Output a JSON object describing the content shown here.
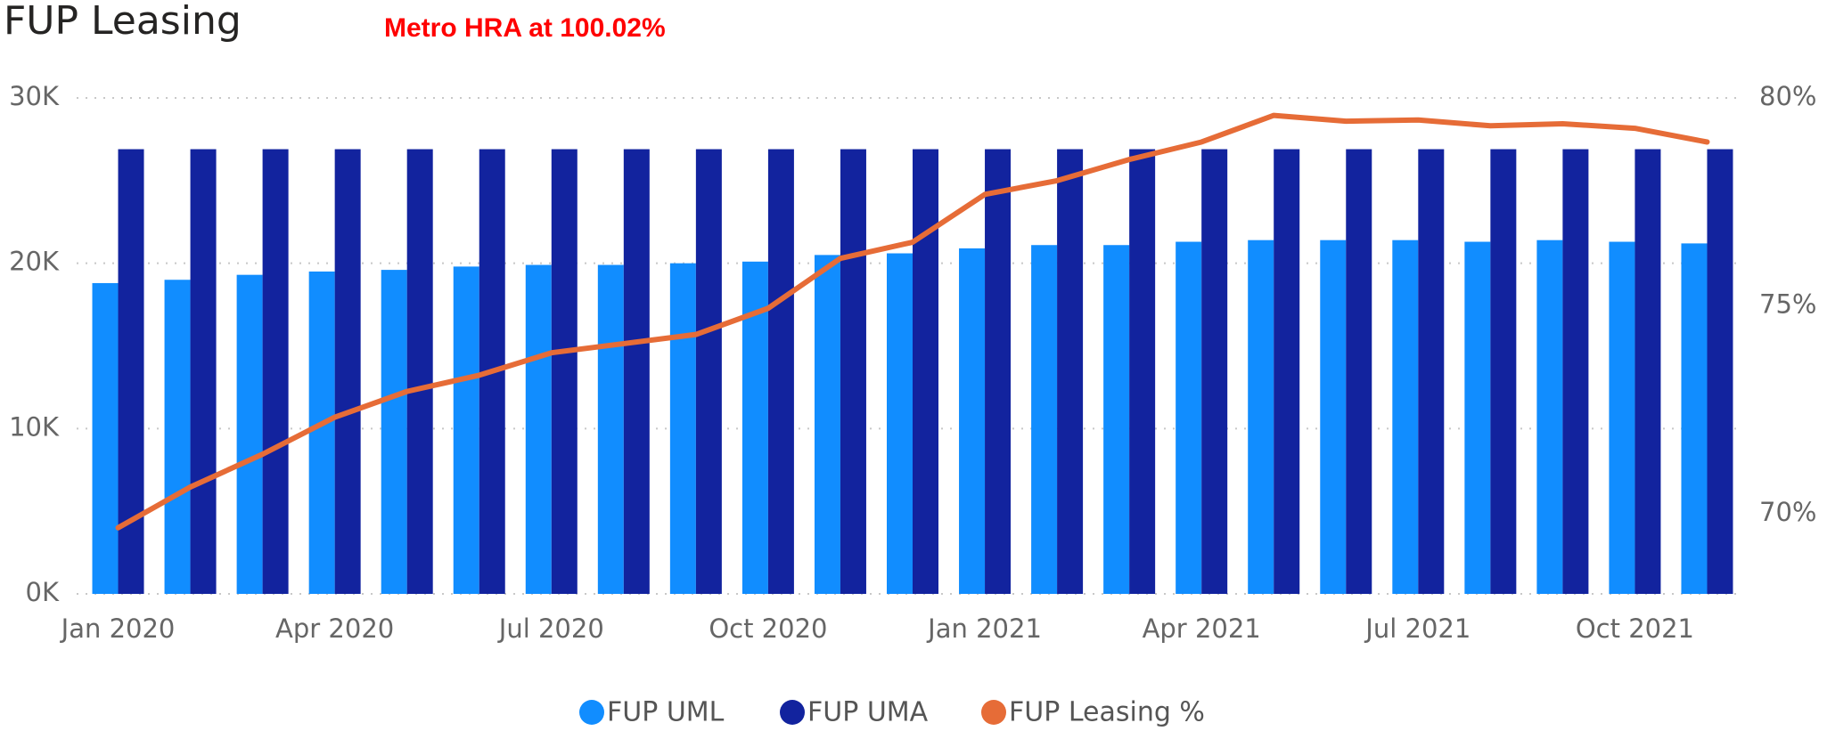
{
  "chart_data": {
    "type": "bar-line",
    "title": "FUP Leasing",
    "annotation": "Metro HRA at 100.02%",
    "categories": [
      "Jan 2020",
      null,
      null,
      "Apr 2020",
      null,
      null,
      "Jul 2020",
      null,
      null,
      "Oct 2020",
      null,
      null,
      "Jan 2021",
      null,
      null,
      "Apr 2021",
      null,
      null,
      "Jul 2021",
      null,
      null,
      "Oct 2021",
      null
    ],
    "series": [
      {
        "name": "FUP UML",
        "color": "#118dff",
        "type": "bar",
        "values": [
          18.8,
          19.0,
          19.3,
          19.5,
          19.6,
          19.8,
          19.9,
          19.9,
          20.0,
          20.1,
          20.5,
          20.6,
          20.9,
          21.1,
          21.1,
          21.3,
          21.4,
          21.4,
          21.4,
          21.3,
          21.4,
          21.3,
          21.2
        ]
      },
      {
        "name": "FUP UMA",
        "color": "#12239e",
        "type": "bar",
        "values": [
          26.9,
          26.9,
          26.9,
          26.9,
          26.9,
          26.9,
          26.9,
          26.9,
          26.9,
          26.9,
          26.9,
          26.9,
          26.9,
          26.9,
          26.9,
          26.9,
          26.9,
          26.9,
          26.9,
          26.9,
          26.9,
          26.9,
          26.9
        ]
      },
      {
        "name": "FUP Leasing %",
        "color": "#e66c37",
        "type": "line",
        "axis": "y2",
        "values": [
          69.66,
          70.64,
          71.43,
          72.32,
          72.94,
          73.33,
          73.87,
          74.09,
          74.31,
          74.94,
          76.14,
          76.53,
          77.68,
          78.01,
          78.52,
          78.94,
          79.58,
          79.44,
          79.47,
          79.33,
          79.38,
          79.27,
          78.94
        ]
      }
    ],
    "ylim": [
      0,
      30
    ],
    "yticks": [
      {
        "value": 0,
        "label": "0K"
      },
      {
        "value": 10,
        "label": "10K"
      },
      {
        "value": 20,
        "label": "20K"
      },
      {
        "value": 30,
        "label": "30K"
      }
    ],
    "y2lim": [
      68.07,
      80
    ],
    "y2ticks": [
      {
        "value": 70,
        "label": "70%"
      },
      {
        "value": 75,
        "label": "75%"
      },
      {
        "value": 80,
        "label": "80%"
      }
    ],
    "grid": true
  }
}
